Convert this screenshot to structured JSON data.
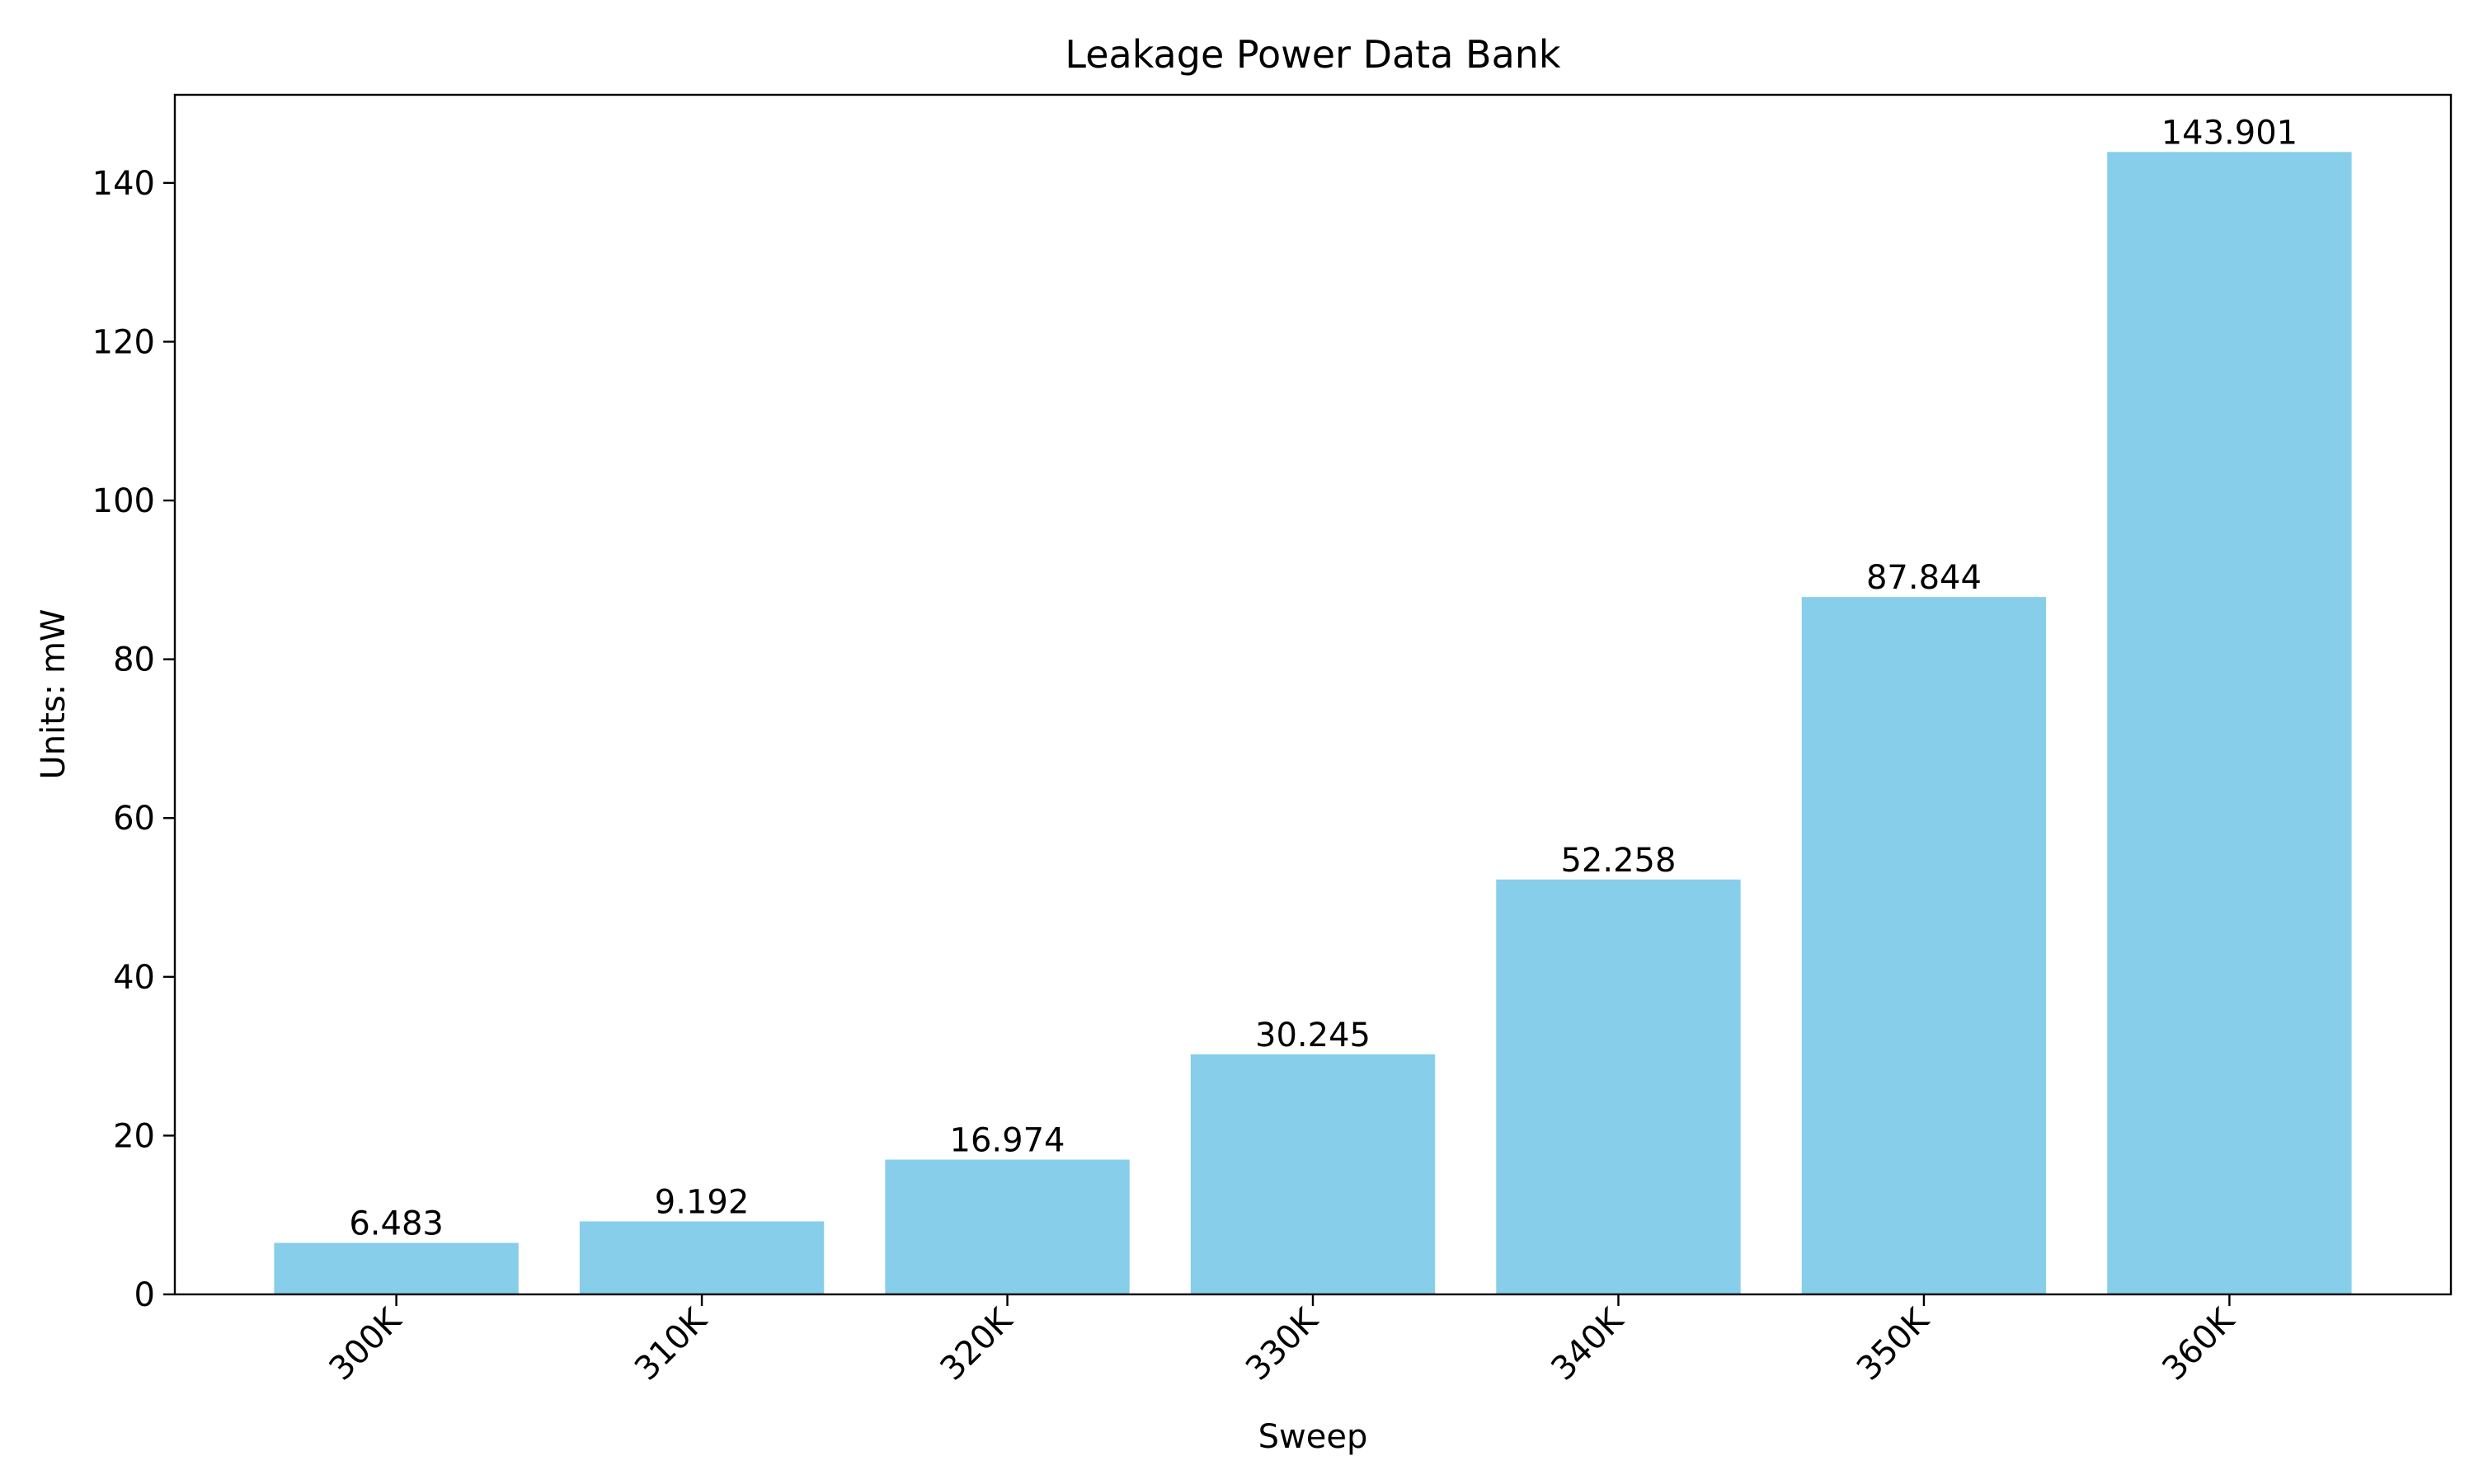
{
  "chart_data": {
    "type": "bar",
    "title": "Leakage Power Data Bank",
    "xlabel": "Sweep",
    "ylabel": "Units: mW",
    "categories": [
      "300K",
      "310K",
      "320K",
      "330K",
      "340K",
      "350K",
      "360K"
    ],
    "values": [
      6.483,
      9.192,
      16.974,
      30.245,
      52.258,
      87.844,
      143.901
    ],
    "value_labels": [
      "6.483",
      "9.192",
      "16.974",
      "30.245",
      "52.258",
      "87.844",
      "143.901"
    ],
    "ylim": [
      0,
      151.1
    ],
    "yticks": [
      0,
      20,
      40,
      60,
      80,
      100,
      120,
      140
    ],
    "bar_color": "#87ceeb",
    "grid": false,
    "legend": "none"
  }
}
